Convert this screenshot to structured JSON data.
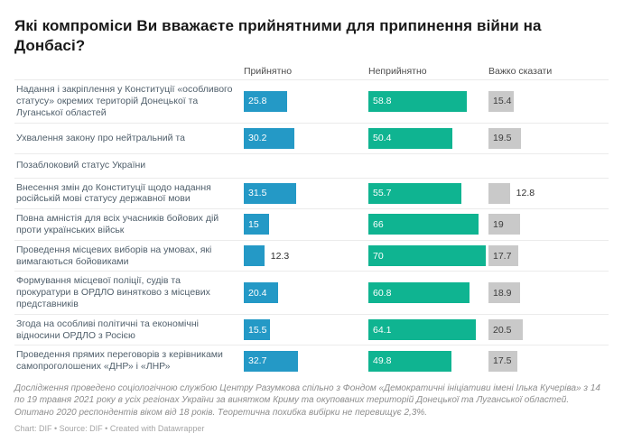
{
  "header": {
    "title_line1": "Які компроміси Ви вважаєте прийнятними для припинення війни на",
    "title_line2": "Донбасі?"
  },
  "footer": {
    "notes": "Дослідження проведено соціологічною службою Центру Разумкова спільно з Фондом «Демократичні ініціативи імені Ілька Кучеріва» з 14 по 19 травня 2021 року в усіх регіонах України за винятком Криму та окупованих територій Донецької та Луганської областей. Опитано 2020 респондентів віком від 18 років. Теоретична похибка вибірки не перевищує 2,3%.",
    "credit": "Chart: DIF • Source: DIF • Created with Datawrapper"
  },
  "chart_data": {
    "type": "bar",
    "title": "Які компроміси Ви вважаєте прийнятними для припинення війни на Донбасі?",
    "unit": "%",
    "columns": [
      "Прийнятно",
      "Неприйнятно",
      "Важко сказати"
    ],
    "colors": {
      "acceptable": "#2499c6",
      "unacceptable": "#0fb491",
      "hard_to_say": "#c9c9c9"
    },
    "layout_hints": {
      "orientation": "horizontal",
      "value_labels": "inside-left, outside when bar too short",
      "axis_range": [
        0,
        75
      ],
      "grid": false
    },
    "rows": [
      {
        "label": "Надання і закріплення у Конституції «особливого статусу» окремих територій Донецької та Луганської областей",
        "values": [
          25.8,
          58.8,
          15.4
        ]
      },
      {
        "label": "Ухвалення закону про нейтральний та",
        "values": [
          30.2,
          50.4,
          19.5
        ]
      },
      {
        "label": "Позаблоковий статус України",
        "values": null
      },
      {
        "label": "Внесення змін до Конституції щодо надання російській мові статусу державної мови",
        "values": [
          31.5,
          55.7,
          12.8
        ]
      },
      {
        "label": "Повна амністія для всіх учасників бойових дій проти українських військ",
        "values": [
          15,
          66,
          19
        ]
      },
      {
        "label": "Проведення місцевих виборів на умовах, які вимагаються бойовиками",
        "values": [
          12.3,
          70,
          17.7
        ]
      },
      {
        "label": "Формування місцевої поліції, судів та прокуратури в ОРДЛО винятково з місцевих представників",
        "values": [
          20.4,
          60.8,
          18.9
        ]
      },
      {
        "label": "Згода на особливі політичні та економічні відносини ОРДЛО з Росією",
        "values": [
          15.5,
          64.1,
          20.5
        ]
      },
      {
        "label": "Проведення прямих переговорів з керівниками самопроголошених «ДНР» і «ЛНР»",
        "values": [
          32.7,
          49.8,
          17.5
        ]
      }
    ]
  }
}
